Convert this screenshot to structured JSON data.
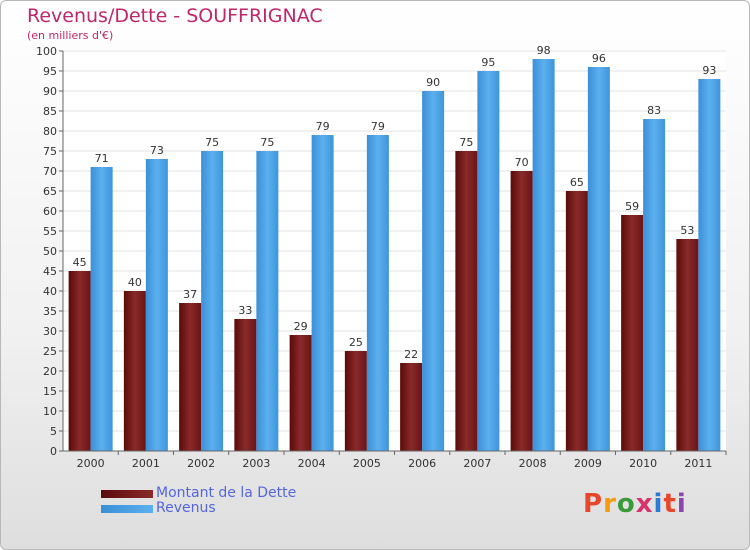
{
  "chart_data": {
    "type": "bar",
    "title": "Revenus/Dette - SOUFFRIGNAC",
    "subtitle": "(en milliers d'€)",
    "categories": [
      "2000",
      "2001",
      "2002",
      "2003",
      "2004",
      "2005",
      "2006",
      "2007",
      "2008",
      "2009",
      "2010",
      "2011"
    ],
    "series": [
      {
        "name": "Montant de la Dette",
        "color": "#7a1a1a",
        "values": [
          45,
          40,
          37,
          33,
          29,
          25,
          22,
          75,
          70,
          65,
          59,
          53
        ]
      },
      {
        "name": "Revenus",
        "color": "#4aa3e8",
        "values": [
          71,
          73,
          75,
          75,
          79,
          79,
          90,
          95,
          98,
          96,
          83,
          93
        ]
      }
    ],
    "ylim": [
      0,
      100
    ],
    "ytick_step": 5,
    "grid": true,
    "legend_position": "bottom-left"
  },
  "legend": {
    "items": [
      {
        "label": "Montant de la Dette",
        "color": "#7a1a1a"
      },
      {
        "label": "Revenus",
        "color": "#4aa3e8"
      }
    ]
  },
  "logo": {
    "text": "Proxiti",
    "colors": [
      "#e8462a",
      "#f39c12",
      "#3a9a3a",
      "#d6336c",
      "#2b7bd6",
      "#e8462a",
      "#8e44ad"
    ]
  }
}
